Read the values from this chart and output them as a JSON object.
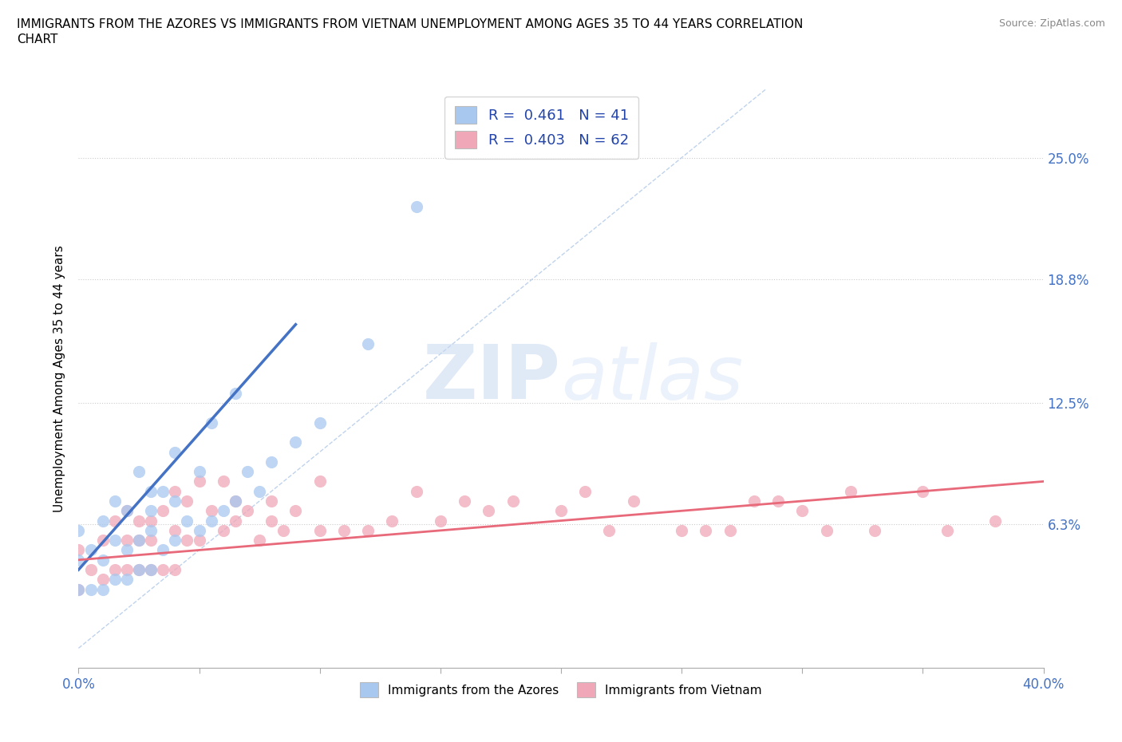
{
  "title": "IMMIGRANTS FROM THE AZORES VS IMMIGRANTS FROM VIETNAM UNEMPLOYMENT AMONG AGES 35 TO 44 YEARS CORRELATION\nCHART",
  "source": "Source: ZipAtlas.com",
  "ylabel": "Unemployment Among Ages 35 to 44 years",
  "xlim": [
    0.0,
    0.4
  ],
  "ylim": [
    -0.01,
    0.285
  ],
  "yticks": [
    0.063,
    0.125,
    0.188,
    0.25
  ],
  "ytick_labels": [
    "6.3%",
    "12.5%",
    "18.8%",
    "25.0%"
  ],
  "xticks": [
    0.0,
    0.05,
    0.1,
    0.15,
    0.2,
    0.25,
    0.3,
    0.35,
    0.4
  ],
  "xtick_labels": [
    "0.0%",
    "",
    "",
    "",
    "",
    "",
    "",
    "",
    "40.0%"
  ],
  "azores_color": "#a8c8f0",
  "vietnam_color": "#f0a8b8",
  "azores_trend_color": "#4472c4",
  "vietnam_trend_color": "#e8697a",
  "azores_R": 0.461,
  "azores_N": 41,
  "vietnam_R": 0.403,
  "vietnam_N": 62,
  "watermark_zip": "ZIP",
  "watermark_atlas": "atlas",
  "azores_x": [
    0.0,
    0.0,
    0.0,
    0.005,
    0.005,
    0.01,
    0.01,
    0.01,
    0.015,
    0.015,
    0.015,
    0.02,
    0.02,
    0.02,
    0.025,
    0.025,
    0.025,
    0.03,
    0.03,
    0.03,
    0.03,
    0.035,
    0.035,
    0.04,
    0.04,
    0.04,
    0.045,
    0.05,
    0.05,
    0.055,
    0.055,
    0.06,
    0.065,
    0.065,
    0.07,
    0.075,
    0.08,
    0.09,
    0.1,
    0.12,
    0.14
  ],
  "azores_y": [
    0.03,
    0.045,
    0.06,
    0.03,
    0.05,
    0.03,
    0.045,
    0.065,
    0.035,
    0.055,
    0.075,
    0.035,
    0.05,
    0.07,
    0.04,
    0.055,
    0.09,
    0.04,
    0.06,
    0.07,
    0.08,
    0.05,
    0.08,
    0.055,
    0.075,
    0.1,
    0.065,
    0.06,
    0.09,
    0.065,
    0.115,
    0.07,
    0.075,
    0.13,
    0.09,
    0.08,
    0.095,
    0.105,
    0.115,
    0.155,
    0.225
  ],
  "vietnam_x": [
    0.0,
    0.0,
    0.005,
    0.01,
    0.01,
    0.015,
    0.015,
    0.02,
    0.02,
    0.02,
    0.025,
    0.025,
    0.025,
    0.03,
    0.03,
    0.03,
    0.035,
    0.035,
    0.04,
    0.04,
    0.04,
    0.045,
    0.045,
    0.05,
    0.05,
    0.055,
    0.06,
    0.06,
    0.065,
    0.065,
    0.07,
    0.075,
    0.08,
    0.08,
    0.085,
    0.09,
    0.1,
    0.1,
    0.11,
    0.12,
    0.13,
    0.14,
    0.15,
    0.16,
    0.17,
    0.18,
    0.2,
    0.21,
    0.22,
    0.23,
    0.25,
    0.26,
    0.27,
    0.28,
    0.29,
    0.3,
    0.31,
    0.32,
    0.33,
    0.35,
    0.36,
    0.38
  ],
  "vietnam_y": [
    0.03,
    0.05,
    0.04,
    0.035,
    0.055,
    0.04,
    0.065,
    0.04,
    0.055,
    0.07,
    0.04,
    0.055,
    0.065,
    0.04,
    0.055,
    0.065,
    0.04,
    0.07,
    0.04,
    0.06,
    0.08,
    0.055,
    0.075,
    0.055,
    0.085,
    0.07,
    0.06,
    0.085,
    0.065,
    0.075,
    0.07,
    0.055,
    0.065,
    0.075,
    0.06,
    0.07,
    0.06,
    0.085,
    0.06,
    0.06,
    0.065,
    0.08,
    0.065,
    0.075,
    0.07,
    0.075,
    0.07,
    0.08,
    0.06,
    0.075,
    0.06,
    0.06,
    0.06,
    0.075,
    0.075,
    0.07,
    0.06,
    0.08,
    0.06,
    0.08,
    0.06,
    0.065
  ],
  "azores_trend_x": [
    0.0,
    0.09
  ],
  "azores_trend_y": [
    0.04,
    0.165
  ],
  "vietnam_trend_x": [
    0.0,
    0.4
  ],
  "vietnam_trend_y": [
    0.045,
    0.085
  ]
}
